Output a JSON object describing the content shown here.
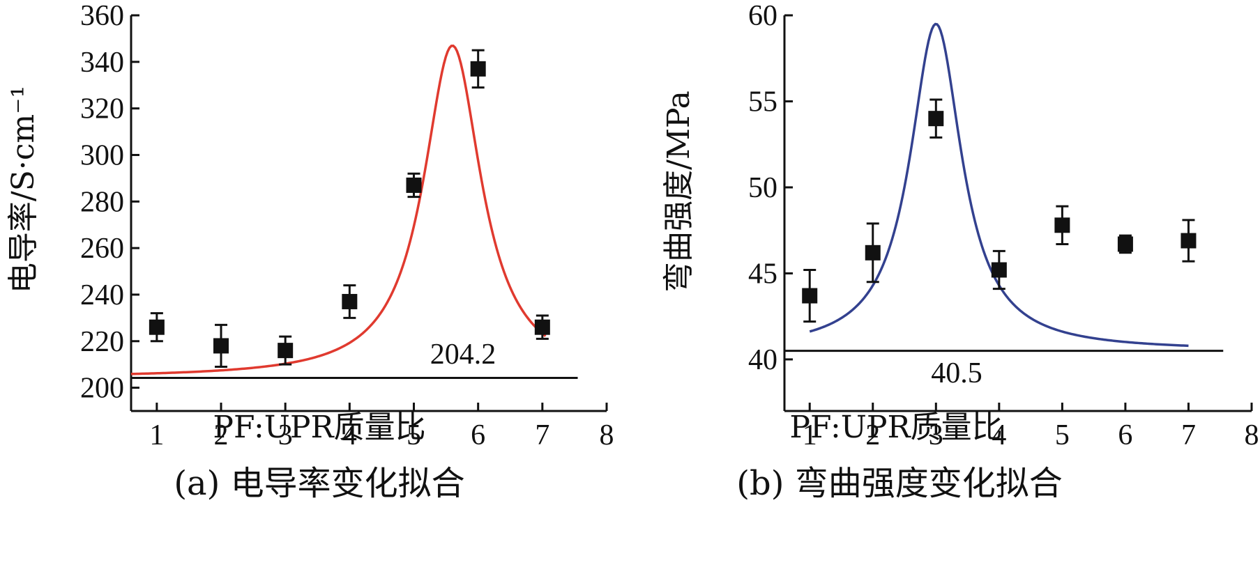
{
  "chart_data": [
    {
      "type": "scatter",
      "panel": "a",
      "caption": "(a) 电导率变化拟合",
      "xlabel": "PF:UPR质量比",
      "ylabel": "电导率/S·cm⁻¹",
      "xlim": [
        0.6,
        8.0
      ],
      "ylim": [
        190,
        360
      ],
      "xticks": [
        1,
        2,
        3,
        4,
        5,
        6,
        7,
        8
      ],
      "yticks": [
        200,
        220,
        240,
        260,
        280,
        300,
        320,
        340,
        360
      ],
      "series": [
        {
          "kind": "points-with-error",
          "color": "#111111",
          "x": [
            1,
            2,
            3,
            4,
            5,
            6,
            7
          ],
          "y": [
            226,
            218,
            216,
            237,
            287,
            337,
            226
          ],
          "err": [
            6,
            9,
            6,
            7,
            5,
            8,
            5
          ]
        },
        {
          "kind": "fit-curve",
          "color": "#e03a2f",
          "baseline": 204.2,
          "peak_x": 5.6,
          "peak_y": 347,
          "width": 0.55,
          "x_range": [
            0.6,
            7.05
          ]
        }
      ],
      "baseline_label": "204.2",
      "baseline_value": 204.2,
      "baseline_x_range": [
        0.6,
        7.55
      ]
    },
    {
      "type": "scatter",
      "panel": "b",
      "caption": "(b) 弯曲强度变化拟合",
      "xlabel": "PF:UPR质量比",
      "ylabel": "弯曲强度/MPa",
      "xlim": [
        0.6,
        8.0
      ],
      "ylim": [
        37.0,
        60.0
      ],
      "xticks": [
        1,
        2,
        3,
        4,
        5,
        6,
        7,
        8
      ],
      "yticks": [
        40,
        45,
        50,
        55,
        60
      ],
      "series": [
        {
          "kind": "points-with-error",
          "color": "#111111",
          "x": [
            1,
            2,
            3,
            4,
            5,
            6,
            7
          ],
          "y": [
            43.7,
            46.2,
            54.0,
            45.2,
            47.8,
            46.7,
            46.9
          ],
          "err": [
            1.5,
            1.7,
            1.1,
            1.1,
            1.1,
            0.5,
            1.2
          ]
        },
        {
          "kind": "fit-curve",
          "color": "#33418f",
          "baseline": 40.5,
          "peak_x": 3.0,
          "peak_y": 59.5,
          "width": 0.5,
          "x_range": [
            1.0,
            7.0
          ]
        }
      ],
      "baseline_label": "40.5",
      "baseline_value": 40.5,
      "baseline_x_range": [
        0.6,
        7.55
      ]
    }
  ]
}
